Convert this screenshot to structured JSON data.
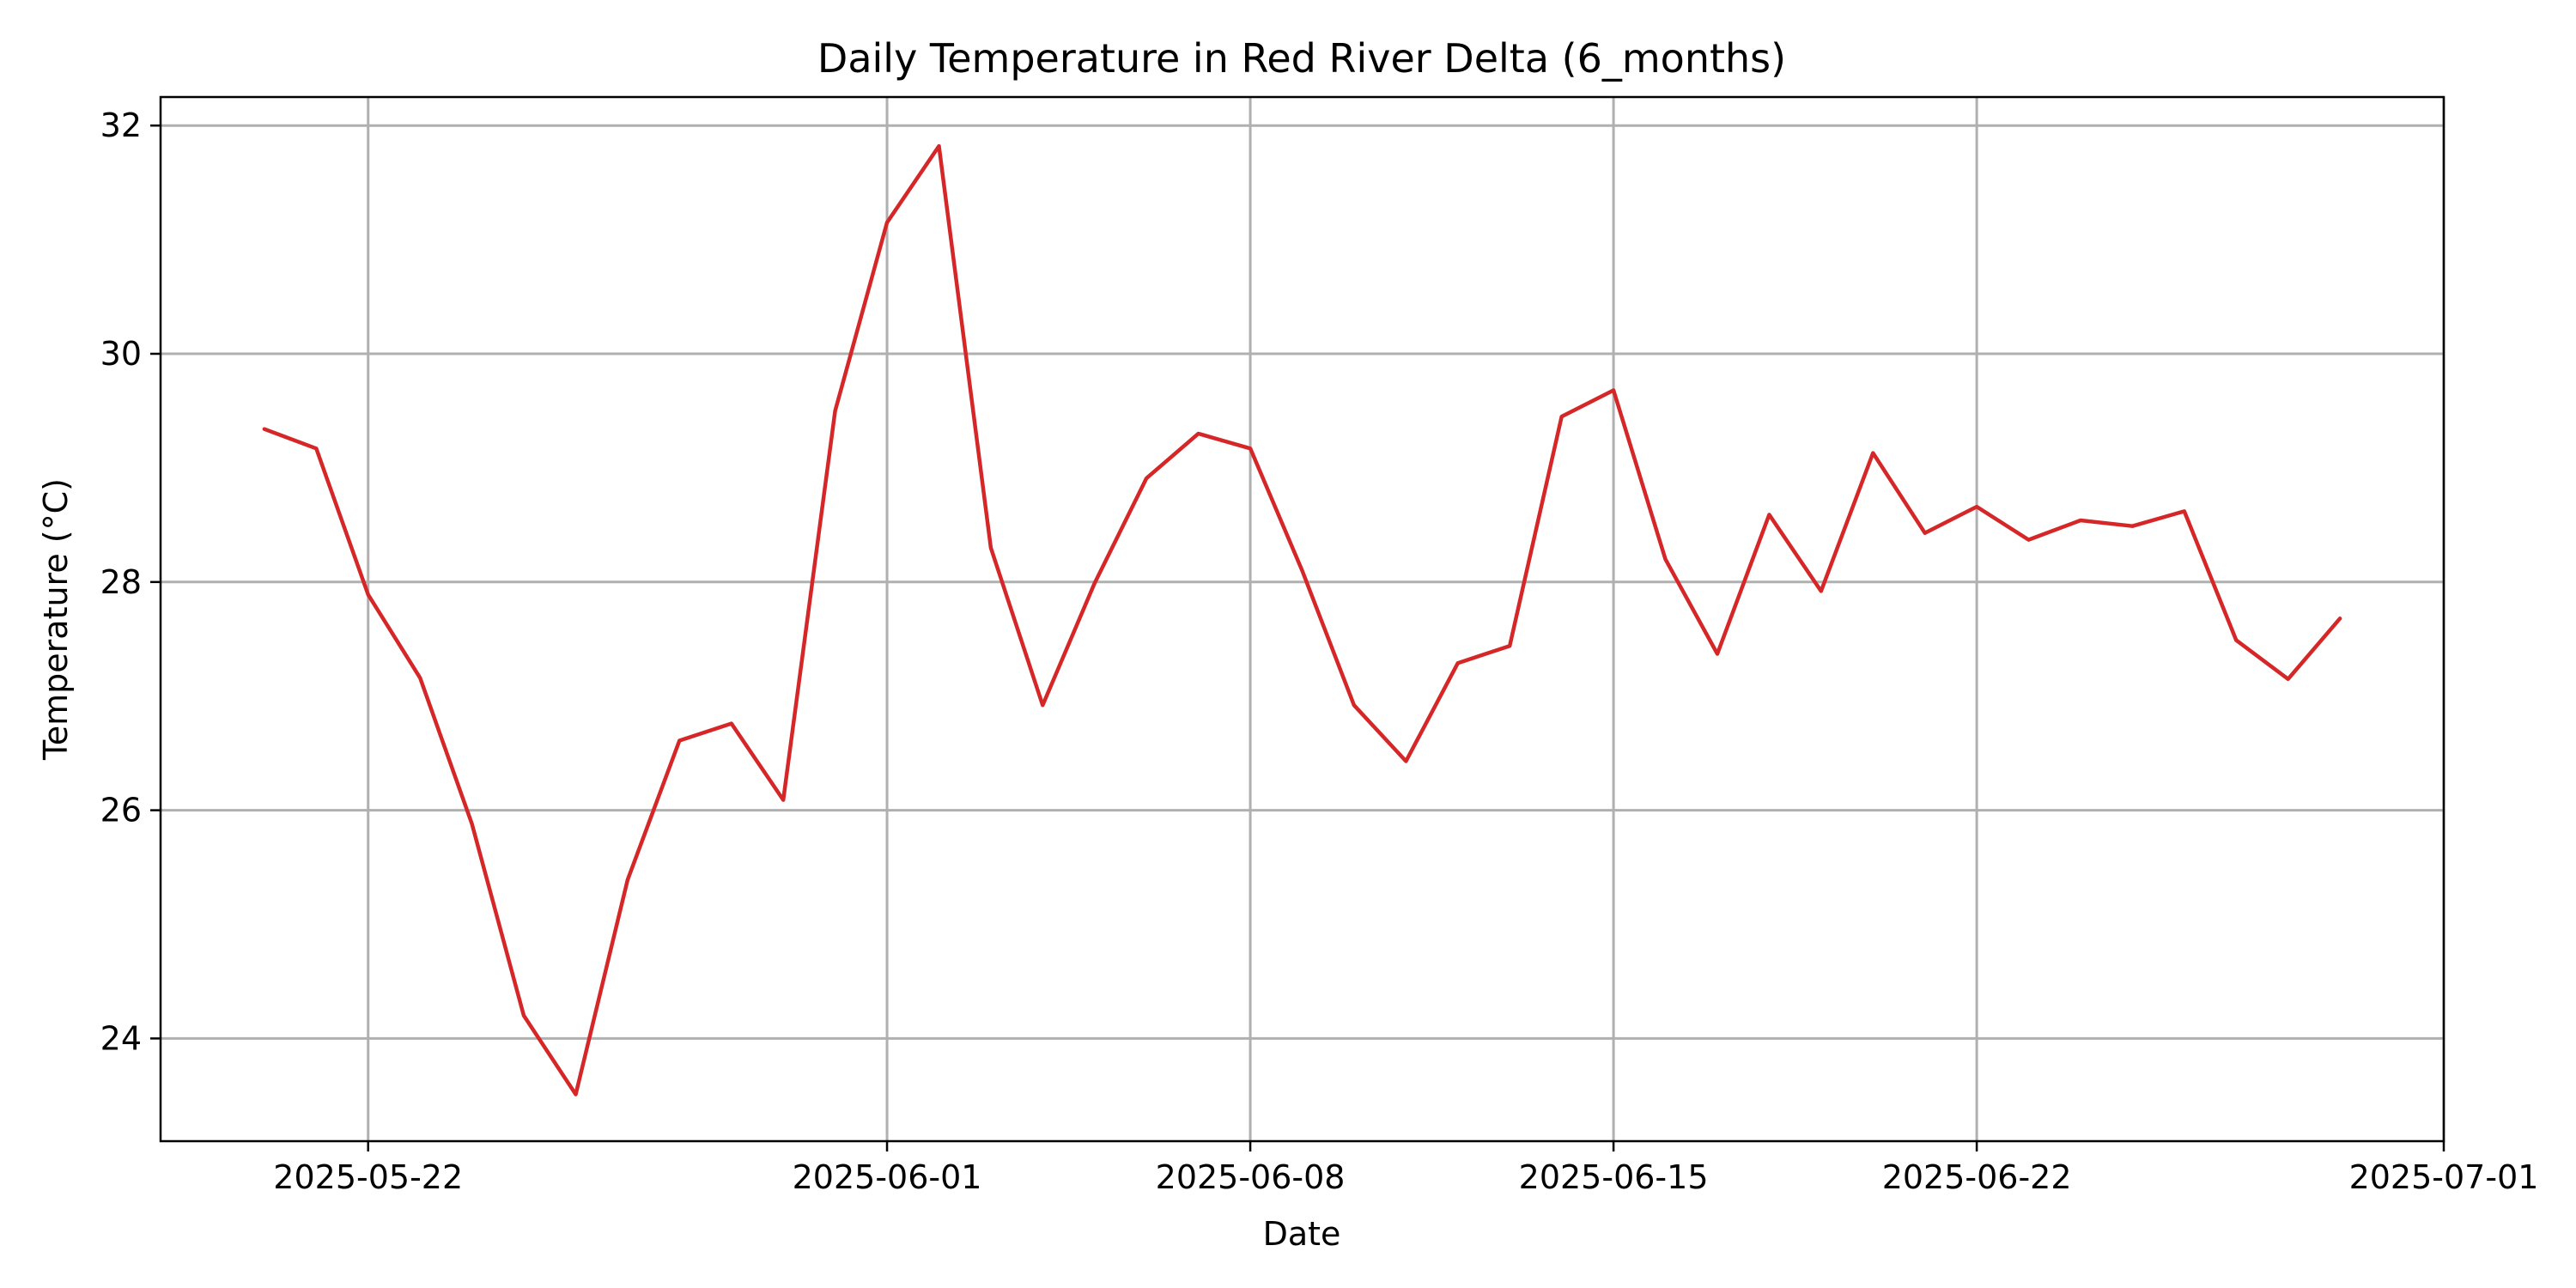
{
  "chart_data": {
    "type": "line",
    "title": "Daily Temperature in Red River Delta (6_months)",
    "xlabel": "Date",
    "ylabel": "Temperature (°C)",
    "x_ticks": [
      "2025-05-22",
      "2025-06-01",
      "2025-06-08",
      "2025-06-15",
      "2025-06-22",
      "2025-07-01"
    ],
    "y_ticks": [
      24,
      26,
      28,
      30,
      32
    ],
    "xlim": [
      "2025-05-18",
      "2025-07-01"
    ],
    "ylim": [
      23.1,
      32.25
    ],
    "grid": true,
    "colors": {
      "line": "#d62728"
    },
    "series": [
      {
        "x": [
          "2025-05-20",
          "2025-05-21",
          "2025-05-22",
          "2025-05-23",
          "2025-05-24",
          "2025-05-25",
          "2025-05-26",
          "2025-05-27",
          "2025-05-28",
          "2025-05-29",
          "2025-05-30",
          "2025-05-31",
          "2025-06-01",
          "2025-06-02",
          "2025-06-03",
          "2025-06-04",
          "2025-06-05",
          "2025-06-06",
          "2025-06-07",
          "2025-06-08",
          "2025-06-09",
          "2025-06-10",
          "2025-06-11",
          "2025-06-12",
          "2025-06-13",
          "2025-06-14",
          "2025-06-15",
          "2025-06-16",
          "2025-06-17",
          "2025-06-18",
          "2025-06-19",
          "2025-06-20",
          "2025-06-21",
          "2025-06-22",
          "2025-06-23",
          "2025-06-24",
          "2025-06-25",
          "2025-06-26",
          "2025-06-27",
          "2025-06-28",
          "2025-06-29"
        ],
        "values": [
          29.34,
          29.17,
          27.89,
          27.16,
          25.88,
          24.2,
          23.51,
          25.39,
          26.61,
          26.76,
          26.09,
          29.5,
          31.15,
          31.82,
          28.3,
          26.92,
          27.99,
          28.91,
          29.3,
          29.17,
          28.1,
          26.92,
          26.43,
          27.29,
          27.44,
          29.45,
          29.68,
          28.2,
          27.37,
          28.59,
          27.92,
          29.13,
          28.43,
          28.66,
          28.37,
          28.54,
          28.49,
          28.62,
          27.49,
          27.15,
          27.68
        ]
      }
    ]
  }
}
